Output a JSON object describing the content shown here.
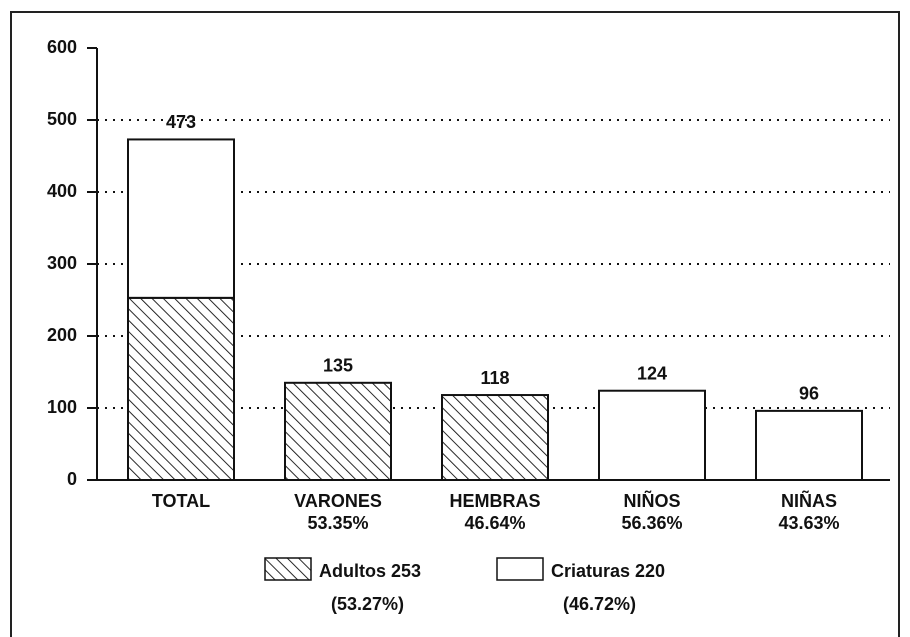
{
  "chart_data": {
    "type": "stacked_bar",
    "categories": [
      "TOTAL",
      "VARONES",
      "HEMBRAS",
      "NIÑOS",
      "NIÑAS"
    ],
    "category_sublabels": [
      null,
      "53.35%",
      "46.64%",
      "56.36%",
      "43.63%"
    ],
    "series": [
      {
        "name": "Adultos 253",
        "legend_sublabel": "(53.27%)",
        "color": "#111111",
        "pattern": "hatch",
        "values": [
          253,
          135,
          118,
          null,
          null
        ]
      },
      {
        "name": "Criaturas 220",
        "legend_sublabel": "(46.72%)",
        "color": "#ffffff",
        "pattern": "none",
        "values": [
          220,
          null,
          null,
          124,
          96
        ]
      }
    ],
    "totals": [
      473,
      135,
      118,
      124,
      96
    ],
    "ylim": [
      0,
      600
    ],
    "yticks": [
      0,
      100,
      200,
      300,
      400,
      500,
      600
    ],
    "grid": true
  }
}
